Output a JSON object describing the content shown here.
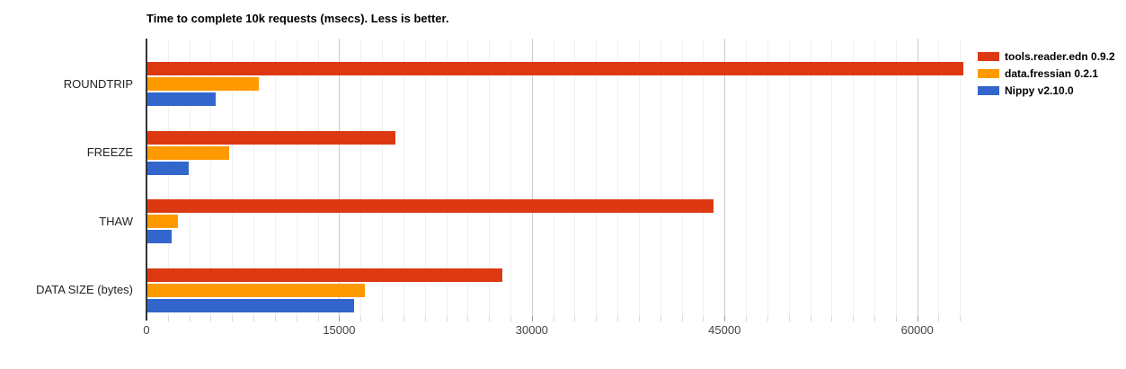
{
  "page": {
    "background": "#ffffff"
  },
  "chart_data": {
    "type": "bar",
    "orientation": "horizontal",
    "title": "Time to complete 10k requests (msecs). Less is better.",
    "categories": [
      "ROUNDTRIP",
      "FREEZE",
      "THAW",
      "DATA SIZE (bytes)"
    ],
    "series": [
      {
        "name": "tools.reader.edn 0.9.2",
        "color": "#DC3912",
        "values": [
          63500,
          19300,
          44100,
          27600
        ]
      },
      {
        "name": "data.fressian 0.2.1",
        "color": "#FF9900",
        "values": [
          8700,
          6400,
          2400,
          16900
        ]
      },
      {
        "name": "Nippy v2.10.0",
        "color": "#3366CC",
        "values": [
          5300,
          3200,
          1900,
          16100
        ]
      }
    ],
    "xlabel": "",
    "ylabel": "",
    "xlim": [
      0,
      64500
    ],
    "x_ticks": [
      0,
      15000,
      30000,
      45000,
      60000
    ],
    "x_tick_labels": [
      "0",
      "15000",
      "30000",
      "45000",
      "60000"
    ],
    "minor_divisions_per_major": 9,
    "grid": true,
    "legend_position": "top-right",
    "colors": {
      "axis": "#333333",
      "gridline_major": "#cccccc",
      "gridline_minor": "#f0f0f0",
      "tick_label": "#444444",
      "category_label": "#222222",
      "title": "#000000"
    }
  }
}
